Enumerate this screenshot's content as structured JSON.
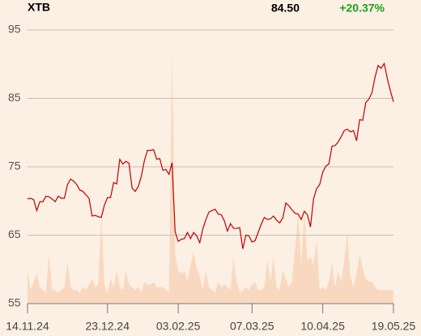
{
  "chart_data": {
    "type": "line",
    "title": "XTB",
    "last_price": "84.50",
    "change": "+20.37%",
    "series": [
      {
        "color": "#c00000",
        "values": [
          70.3,
          70.4,
          70.2,
          68.6,
          69.9,
          69.9,
          70.7,
          70.6,
          70.3,
          69.9,
          70.7,
          70.4,
          70.4,
          72.4,
          73.2,
          72.9,
          72.4,
          71.6,
          71.4,
          70.9,
          70.4,
          67.8,
          67.9,
          67.7,
          67.6,
          69.4,
          70.5,
          70.5,
          72.7,
          72.5,
          76.1,
          75.4,
          75.8,
          75.5,
          71.9,
          71.4,
          72.1,
          73.6,
          75.9,
          77.4,
          77.4,
          77.5,
          76.1,
          76.2,
          74.5,
          74.6,
          73.9,
          75.6,
          65.5,
          64.1,
          64.4,
          64.5,
          65.4,
          64.5,
          65.4,
          64.9,
          63.9,
          65.9,
          67.3,
          68.4,
          68.6,
          68.8,
          68.1,
          68.0,
          67.1,
          65.6,
          66.7,
          66.0,
          66.0,
          66.1,
          63.0,
          65.0,
          64.9,
          64.0,
          64.2,
          65.4,
          66.6,
          67.6,
          67.3,
          67.4,
          67.8,
          67.2,
          66.8,
          67.5,
          69.7,
          69.3,
          68.7,
          68.2,
          68.1,
          67.3,
          68.5,
          68.0,
          66.2,
          70.3,
          71.8,
          72.4,
          74.2,
          75.1,
          75.4,
          78.0,
          78.1,
          78.6,
          79.4,
          80.3,
          80.5,
          80.1,
          80.3,
          78.8,
          81.9,
          81.8,
          84.4,
          84.9,
          85.8,
          88.1,
          89.8,
          89.4,
          90.1,
          87.9,
          86.1,
          84.5
        ]
      }
    ],
    "volume": [
      12,
      5,
      8,
      11,
      6,
      5,
      4,
      18,
      5,
      5,
      4,
      5,
      6,
      15,
      6,
      5,
      5,
      4,
      6,
      5,
      7,
      9,
      6,
      7,
      32,
      7,
      4,
      9,
      6,
      12,
      6,
      5,
      12,
      7,
      6,
      5,
      6,
      4,
      8,
      7,
      7,
      8,
      6,
      6,
      6,
      5,
      4,
      92,
      18,
      12,
      11,
      12,
      8,
      14,
      19,
      13,
      10,
      5,
      12,
      6,
      5,
      4,
      8,
      6,
      7,
      6,
      5,
      17,
      8,
      4,
      5,
      6,
      5,
      7,
      8,
      5,
      5,
      6,
      16,
      8,
      17,
      6,
      5,
      12,
      9,
      6,
      8,
      20,
      33,
      14,
      33,
      16,
      17,
      14,
      23,
      5,
      6,
      5,
      8,
      15,
      6,
      12,
      8,
      16,
      26,
      10,
      6,
      11,
      18,
      13,
      9,
      8,
      8,
      6,
      5,
      5,
      5,
      5,
      5,
      5
    ],
    "y2lim": [
      0,
      100
    ],
    "ylim": [
      55,
      95
    ],
    "yticks": [
      55,
      65,
      75,
      85,
      95
    ],
    "xlim": [
      0,
      119
    ],
    "xticks": [
      {
        "value": 0,
        "label": "14.11.24"
      },
      {
        "value": 26,
        "label": "23.12.24"
      },
      {
        "value": 49,
        "label": "03.02.25"
      },
      {
        "value": 73,
        "label": "07.03.25"
      },
      {
        "value": 96,
        "label": "10.04.25"
      },
      {
        "value": 119,
        "label": "19.05.25"
      }
    ],
    "volume_color": "#f8d9c0",
    "grid": true
  }
}
